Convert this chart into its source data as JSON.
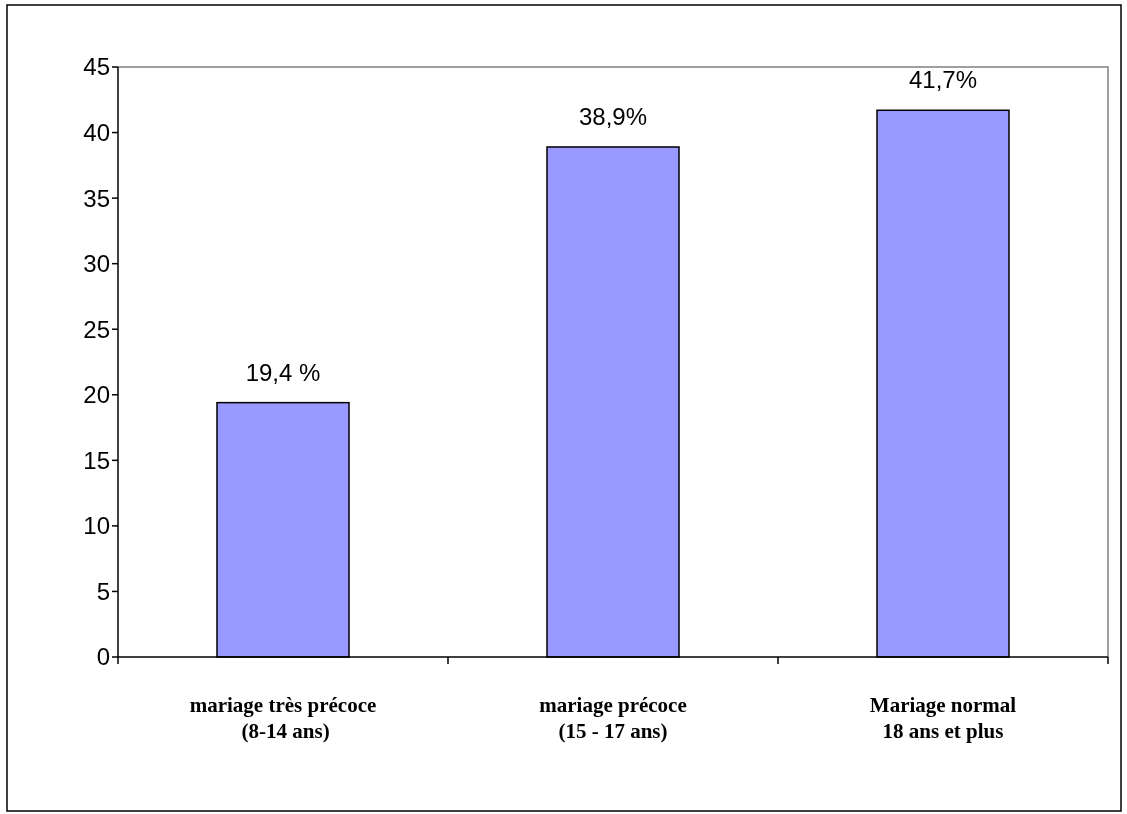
{
  "chart_data": {
    "type": "bar",
    "categories": [
      "mariage très précoce\n (8-14 ans)",
      "mariage précoce\n(15 - 17 ans)",
      "Mariage normal\n18 ans et plus"
    ],
    "values": [
      19.4,
      38.9,
      41.7
    ],
    "value_labels": [
      "19,4 %",
      "38,9%",
      "41,7%"
    ],
    "color": "#9999ff",
    "ylim": [
      0,
      45
    ],
    "yticks": [
      0,
      5,
      10,
      15,
      20,
      25,
      30,
      35,
      40,
      45
    ],
    "grid": false
  }
}
